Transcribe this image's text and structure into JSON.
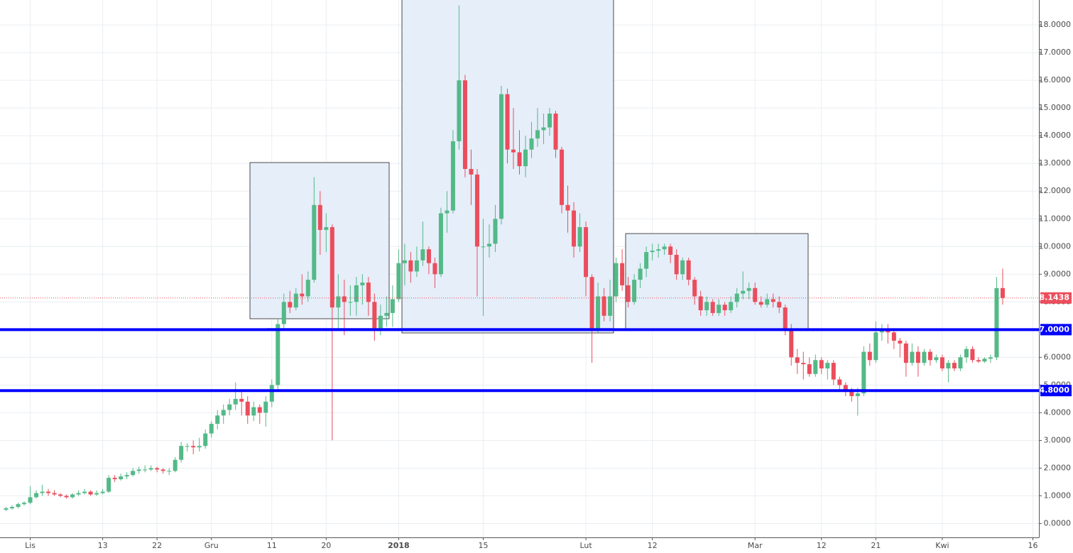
{
  "chart_data": {
    "type": "candlestick",
    "up_color": "#53b987",
    "down_color": "#eb4d5c",
    "grid": true,
    "ylim": [
      -0.5,
      18.9
    ],
    "xlim": [
      "2017-10-27",
      "2018-04-17"
    ],
    "yticks": [
      {
        "value": 0,
        "label": "0.0000"
      },
      {
        "value": 1,
        "label": "1.0000"
      },
      {
        "value": 2,
        "label": "2.0000"
      },
      {
        "value": 3,
        "label": "3.0000"
      },
      {
        "value": 4,
        "label": "4.0000"
      },
      {
        "value": 5,
        "label": "5.0000"
      },
      {
        "value": 6,
        "label": "6.0000"
      },
      {
        "value": 7,
        "label": "7.0000"
      },
      {
        "value": 8,
        "label": "8.0000"
      },
      {
        "value": 9,
        "label": "9.0000"
      },
      {
        "value": 10,
        "label": "10.0000"
      },
      {
        "value": 11,
        "label": "11.0000"
      },
      {
        "value": 12,
        "label": "12.0000"
      },
      {
        "value": 13,
        "label": "13.0000"
      },
      {
        "value": 14,
        "label": "14.0000"
      },
      {
        "value": 15,
        "label": "15.0000"
      },
      {
        "value": 16,
        "label": "16.0000"
      },
      {
        "value": 17,
        "label": "17.0000"
      },
      {
        "value": 18,
        "label": "18.0000"
      }
    ],
    "xticks": [
      {
        "value": "2017-11-01",
        "label": "Lis"
      },
      {
        "value": "2017-11-13",
        "label": "13"
      },
      {
        "value": "2017-11-22",
        "label": "22"
      },
      {
        "value": "2017-12-01",
        "label": "Gru"
      },
      {
        "value": "2017-12-11",
        "label": "11"
      },
      {
        "value": "2017-12-20",
        "label": "20"
      },
      {
        "value": "2018-01-01",
        "label": "2018"
      },
      {
        "value": "2018-01-15",
        "label": "15"
      },
      {
        "value": "2018-02-01",
        "label": "Lut"
      },
      {
        "value": "2018-02-12",
        "label": "12"
      },
      {
        "value": "2018-03-01",
        "label": "Mar"
      },
      {
        "value": "2018-03-12",
        "label": "12"
      },
      {
        "value": "2018-03-21",
        "label": "21"
      },
      {
        "value": "2018-04-01",
        "label": "Kwi"
      },
      {
        "value": "2018-04-16",
        "label": "16"
      }
    ],
    "hlines": [
      {
        "value": 7,
        "label": "7.0000",
        "color": "#0000ff"
      },
      {
        "value": 4.8,
        "label": "4.8000",
        "color": "#0000ff"
      }
    ],
    "last_price": 8.1438,
    "last_price_color": "#eb4d5c",
    "x": [
      "2017-10-28",
      "2017-10-29",
      "2017-10-30",
      "2017-10-31",
      "2017-11-01",
      "2017-11-02",
      "2017-11-03",
      "2017-11-04",
      "2017-11-05",
      "2017-11-06",
      "2017-11-07",
      "2017-11-08",
      "2017-11-09",
      "2017-11-10",
      "2017-11-11",
      "2017-11-12",
      "2017-11-13",
      "2017-11-14",
      "2017-11-15",
      "2017-11-16",
      "2017-11-17",
      "2017-11-18",
      "2017-11-19",
      "2017-11-20",
      "2017-11-21",
      "2017-11-22",
      "2017-11-23",
      "2017-11-24",
      "2017-11-25",
      "2017-11-26",
      "2017-11-27",
      "2017-11-28",
      "2017-11-29",
      "2017-11-30",
      "2017-12-01",
      "2017-12-02",
      "2017-12-03",
      "2017-12-04",
      "2017-12-05",
      "2017-12-06",
      "2017-12-07",
      "2017-12-08",
      "2017-12-09",
      "2017-12-10",
      "2017-12-11",
      "2017-12-12",
      "2017-12-13",
      "2017-12-14",
      "2017-12-15",
      "2017-12-16",
      "2017-12-17",
      "2017-12-18",
      "2017-12-19",
      "2017-12-20",
      "2017-12-21",
      "2017-12-22",
      "2017-12-23",
      "2017-12-24",
      "2017-12-25",
      "2017-12-26",
      "2017-12-27",
      "2017-12-28",
      "2017-12-29",
      "2017-12-30",
      "2017-12-31",
      "2018-01-01",
      "2018-01-02",
      "2018-01-03",
      "2018-01-04",
      "2018-01-05",
      "2018-01-06",
      "2018-01-07",
      "2018-01-08",
      "2018-01-09",
      "2018-01-10",
      "2018-01-11",
      "2018-01-12",
      "2018-01-13",
      "2018-01-14",
      "2018-01-15",
      "2018-01-16",
      "2018-01-17",
      "2018-01-18",
      "2018-01-19",
      "2018-01-20",
      "2018-01-21",
      "2018-01-22",
      "2018-01-23",
      "2018-01-24",
      "2018-01-25",
      "2018-01-26",
      "2018-01-27",
      "2018-01-28",
      "2018-01-29",
      "2018-01-30",
      "2018-01-31",
      "2018-02-01",
      "2018-02-02",
      "2018-02-03",
      "2018-02-04",
      "2018-02-05",
      "2018-02-06",
      "2018-02-07",
      "2018-02-08",
      "2018-02-09",
      "2018-02-10",
      "2018-02-11",
      "2018-02-12",
      "2018-02-13",
      "2018-02-14",
      "2018-02-15",
      "2018-02-16",
      "2018-02-17",
      "2018-02-18",
      "2018-02-19",
      "2018-02-20",
      "2018-02-21",
      "2018-02-22",
      "2018-02-23",
      "2018-02-24",
      "2018-02-25",
      "2018-02-26",
      "2018-02-27",
      "2018-02-28",
      "2018-03-01",
      "2018-03-02",
      "2018-03-03",
      "2018-03-04",
      "2018-03-05",
      "2018-03-06",
      "2018-03-07",
      "2018-03-08",
      "2018-03-09",
      "2018-03-10",
      "2018-03-11",
      "2018-03-12",
      "2018-03-13",
      "2018-03-14",
      "2018-03-15",
      "2018-03-16",
      "2018-03-17",
      "2018-03-18",
      "2018-03-19",
      "2018-03-20",
      "2018-03-21",
      "2018-03-22",
      "2018-03-23",
      "2018-03-24",
      "2018-03-25",
      "2018-03-26",
      "2018-03-27",
      "2018-03-28",
      "2018-03-29",
      "2018-03-30",
      "2018-03-31",
      "2018-04-01",
      "2018-04-02",
      "2018-04-03",
      "2018-04-04",
      "2018-04-05",
      "2018-04-06",
      "2018-04-07",
      "2018-04-08",
      "2018-04-09",
      "2018-04-10",
      "2018-04-11"
    ],
    "ohlc": [
      [
        0.5,
        0.6,
        0.45,
        0.55
      ],
      [
        0.55,
        0.65,
        0.5,
        0.6
      ],
      [
        0.6,
        0.75,
        0.55,
        0.7
      ],
      [
        0.7,
        0.8,
        0.65,
        0.75
      ],
      [
        0.75,
        1.35,
        0.7,
        0.95
      ],
      [
        0.95,
        1.2,
        0.9,
        1.1
      ],
      [
        1.1,
        1.4,
        1.0,
        1.15
      ],
      [
        1.15,
        1.25,
        1.0,
        1.1
      ],
      [
        1.1,
        1.2,
        1.0,
        1.05
      ],
      [
        1.05,
        1.1,
        0.95,
        1.0
      ],
      [
        1.0,
        1.05,
        0.9,
        0.95
      ],
      [
        0.95,
        1.1,
        0.9,
        1.05
      ],
      [
        1.05,
        1.2,
        1.0,
        1.1
      ],
      [
        1.1,
        1.25,
        1.05,
        1.15
      ],
      [
        1.15,
        1.2,
        1.0,
        1.05
      ],
      [
        1.05,
        1.2,
        1.0,
        1.1
      ],
      [
        1.1,
        1.25,
        1.05,
        1.15
      ],
      [
        1.15,
        1.75,
        1.1,
        1.65
      ],
      [
        1.65,
        1.75,
        1.5,
        1.6
      ],
      [
        1.6,
        1.8,
        1.55,
        1.7
      ],
      [
        1.7,
        1.85,
        1.6,
        1.75
      ],
      [
        1.75,
        2.0,
        1.7,
        1.9
      ],
      [
        1.9,
        2.05,
        1.8,
        1.95
      ],
      [
        1.95,
        2.1,
        1.85,
        1.95
      ],
      [
        1.95,
        2.1,
        1.9,
        2.0
      ],
      [
        2.0,
        2.05,
        1.85,
        1.95
      ],
      [
        1.95,
        2.0,
        1.8,
        1.9
      ],
      [
        1.9,
        2.0,
        1.75,
        1.9
      ],
      [
        1.9,
        2.4,
        1.85,
        2.3
      ],
      [
        2.3,
        2.95,
        2.2,
        2.8
      ],
      [
        2.8,
        2.9,
        2.6,
        2.8
      ],
      [
        2.8,
        3.0,
        2.5,
        2.75
      ],
      [
        2.75,
        3.1,
        2.6,
        2.8
      ],
      [
        2.8,
        3.4,
        2.7,
        3.25
      ],
      [
        3.25,
        3.7,
        3.1,
        3.6
      ],
      [
        3.6,
        4.1,
        3.4,
        3.9
      ],
      [
        3.9,
        4.3,
        3.6,
        4.1
      ],
      [
        4.1,
        4.5,
        3.9,
        4.3
      ],
      [
        4.3,
        5.1,
        4.1,
        4.5
      ],
      [
        4.5,
        4.8,
        3.9,
        4.4
      ],
      [
        4.4,
        4.6,
        3.6,
        3.9
      ],
      [
        3.9,
        4.4,
        3.7,
        4.2
      ],
      [
        4.2,
        4.3,
        3.6,
        4.0
      ],
      [
        4.0,
        4.6,
        3.5,
        4.4
      ],
      [
        4.4,
        5.2,
        4.2,
        5.0
      ],
      [
        5.0,
        7.4,
        4.8,
        7.2
      ],
      [
        7.2,
        8.3,
        7.0,
        8.0
      ],
      [
        8.0,
        8.4,
        7.6,
        7.8
      ],
      [
        7.8,
        8.5,
        7.7,
        8.3
      ],
      [
        8.3,
        9.0,
        7.9,
        8.2
      ],
      [
        8.2,
        9.1,
        8.0,
        8.8
      ],
      [
        8.8,
        12.5,
        8.7,
        11.5
      ],
      [
        11.5,
        12.0,
        9.7,
        10.6
      ],
      [
        10.6,
        11.2,
        9.8,
        10.7
      ],
      [
        10.7,
        10.8,
        3.0,
        7.8
      ],
      [
        7.8,
        9.0,
        7.0,
        8.2
      ],
      [
        8.2,
        8.8,
        6.8,
        8.0
      ],
      [
        8.0,
        8.6,
        7.5,
        8.0
      ],
      [
        8.0,
        8.9,
        7.5,
        8.6
      ],
      [
        8.6,
        9.0,
        7.9,
        8.7
      ],
      [
        8.7,
        8.9,
        7.5,
        8.0
      ],
      [
        8.0,
        8.3,
        6.6,
        7.0
      ],
      [
        7.0,
        7.9,
        6.8,
        7.5
      ],
      [
        7.5,
        8.2,
        7.1,
        7.6
      ],
      [
        7.6,
        8.6,
        7.1,
        8.1
      ],
      [
        8.1,
        9.9,
        8.0,
        9.4
      ],
      [
        9.4,
        10.1,
        8.6,
        9.5
      ],
      [
        9.5,
        9.8,
        8.7,
        9.1
      ],
      [
        9.1,
        10.0,
        8.9,
        9.5
      ],
      [
        9.5,
        10.9,
        9.3,
        9.9
      ],
      [
        9.9,
        10.0,
        9.0,
        9.4
      ],
      [
        9.4,
        9.6,
        8.5,
        9.0
      ],
      [
        9.0,
        11.4,
        8.9,
        11.2
      ],
      [
        11.2,
        12.0,
        10.5,
        11.3
      ],
      [
        11.3,
        14.2,
        11.2,
        13.8
      ],
      [
        13.8,
        18.7,
        13.5,
        16.0
      ],
      [
        16.0,
        16.2,
        12.5,
        12.8
      ],
      [
        12.8,
        13.5,
        11.5,
        12.6
      ],
      [
        12.6,
        12.8,
        8.2,
        10.0
      ],
      [
        10.0,
        11.0,
        7.5,
        10.0
      ],
      [
        10.0,
        10.8,
        9.6,
        10.1
      ],
      [
        10.1,
        11.5,
        9.8,
        11.0
      ],
      [
        11.0,
        15.8,
        10.8,
        15.5
      ],
      [
        15.5,
        15.7,
        13.0,
        13.5
      ],
      [
        13.5,
        15.0,
        12.8,
        13.4
      ],
      [
        13.4,
        14.2,
        12.6,
        12.9
      ],
      [
        12.9,
        14.0,
        12.5,
        13.5
      ],
      [
        13.5,
        14.5,
        13.2,
        13.9
      ],
      [
        13.9,
        15.0,
        13.6,
        14.2
      ],
      [
        14.2,
        14.8,
        13.7,
        14.3
      ],
      [
        14.3,
        15.0,
        14.0,
        14.8
      ],
      [
        14.8,
        14.9,
        13.2,
        13.5
      ],
      [
        13.5,
        13.6,
        11.2,
        11.5
      ],
      [
        11.5,
        12.2,
        10.5,
        11.3
      ],
      [
        11.3,
        11.6,
        9.6,
        10.0
      ],
      [
        10.0,
        11.2,
        9.8,
        10.7
      ],
      [
        10.7,
        10.9,
        8.2,
        8.9
      ],
      [
        8.9,
        9.0,
        5.8,
        7.0
      ],
      [
        7.0,
        8.7,
        6.9,
        8.2
      ],
      [
        8.2,
        8.5,
        7.3,
        7.5
      ],
      [
        7.5,
        8.8,
        7.3,
        8.2
      ],
      [
        8.2,
        9.6,
        8.0,
        9.4
      ],
      [
        9.4,
        9.9,
        8.4,
        8.6
      ],
      [
        8.6,
        8.9,
        7.8,
        8.0
      ],
      [
        8.0,
        9.0,
        7.9,
        8.8
      ],
      [
        8.8,
        9.4,
        8.5,
        9.2
      ],
      [
        9.2,
        10.0,
        8.9,
        9.8
      ],
      [
        9.8,
        10.1,
        9.5,
        9.85
      ],
      [
        9.85,
        10.1,
        9.6,
        9.9
      ],
      [
        9.9,
        10.1,
        9.7,
        10.0
      ],
      [
        10.0,
        10.1,
        9.4,
        9.7
      ],
      [
        9.7,
        9.9,
        8.8,
        9.0
      ],
      [
        9.0,
        9.6,
        8.8,
        9.5
      ],
      [
        9.5,
        9.6,
        8.6,
        8.8
      ],
      [
        8.8,
        8.9,
        7.9,
        8.2
      ],
      [
        8.2,
        8.4,
        7.5,
        7.7
      ],
      [
        7.7,
        8.2,
        7.5,
        8.0
      ],
      [
        8.0,
        8.1,
        7.5,
        7.6
      ],
      [
        7.6,
        8.1,
        7.5,
        7.9
      ],
      [
        7.9,
        8.0,
        7.5,
        7.7
      ],
      [
        7.7,
        8.2,
        7.6,
        8.0
      ],
      [
        8.0,
        8.5,
        7.8,
        8.3
      ],
      [
        8.3,
        9.1,
        8.1,
        8.4
      ],
      [
        8.4,
        8.7,
        8.1,
        8.5
      ],
      [
        8.5,
        8.7,
        7.9,
        8.0
      ],
      [
        8.0,
        8.2,
        7.8,
        7.9
      ],
      [
        7.9,
        8.3,
        7.8,
        8.1
      ],
      [
        8.1,
        8.3,
        7.8,
        8.0
      ],
      [
        8.0,
        8.2,
        7.6,
        7.8
      ],
      [
        7.8,
        7.9,
        6.8,
        7.0
      ],
      [
        7.0,
        7.2,
        5.7,
        6.0
      ],
      [
        6.0,
        6.3,
        5.4,
        5.8
      ],
      [
        5.8,
        6.2,
        5.2,
        5.75
      ],
      [
        5.75,
        6.0,
        5.3,
        5.4
      ],
      [
        5.4,
        6.1,
        5.3,
        5.9
      ],
      [
        5.9,
        6.0,
        5.4,
        5.6
      ],
      [
        5.6,
        5.9,
        5.2,
        5.8
      ],
      [
        5.8,
        5.9,
        5.0,
        5.2
      ],
      [
        5.2,
        5.3,
        4.8,
        5.0
      ],
      [
        5.0,
        5.1,
        4.6,
        4.8
      ],
      [
        4.8,
        4.9,
        4.4,
        4.6
      ],
      [
        4.6,
        4.9,
        3.9,
        4.7
      ],
      [
        4.7,
        6.4,
        4.6,
        6.2
      ],
      [
        6.2,
        6.5,
        5.7,
        5.9
      ],
      [
        5.9,
        7.3,
        5.8,
        6.9
      ],
      [
        6.9,
        7.2,
        6.6,
        6.95
      ],
      [
        6.95,
        7.2,
        6.5,
        6.9
      ],
      [
        6.9,
        7.0,
        6.3,
        6.6
      ],
      [
        6.6,
        6.7,
        6.0,
        6.5
      ],
      [
        6.5,
        6.6,
        5.3,
        5.8
      ],
      [
        5.8,
        6.5,
        5.7,
        6.2
      ],
      [
        6.2,
        6.4,
        5.3,
        5.8
      ],
      [
        5.8,
        6.3,
        5.7,
        6.2
      ],
      [
        6.2,
        6.3,
        5.7,
        5.9
      ],
      [
        5.9,
        6.1,
        5.8,
        6.0
      ],
      [
        6.0,
        6.1,
        5.5,
        5.6
      ],
      [
        5.6,
        5.9,
        5.1,
        5.8
      ],
      [
        5.8,
        5.9,
        5.5,
        5.6
      ],
      [
        5.6,
        6.1,
        5.5,
        6.0
      ],
      [
        6.0,
        6.4,
        5.8,
        6.3
      ],
      [
        6.3,
        6.4,
        5.8,
        5.9
      ],
      [
        5.9,
        6.0,
        5.8,
        5.85
      ],
      [
        5.85,
        6.0,
        5.8,
        5.95
      ],
      [
        5.95,
        6.1,
        5.8,
        6.0
      ],
      [
        6.0,
        8.9,
        5.9,
        8.5
      ],
      [
        8.5,
        9.2,
        7.9,
        8.1438
      ]
    ]
  }
}
